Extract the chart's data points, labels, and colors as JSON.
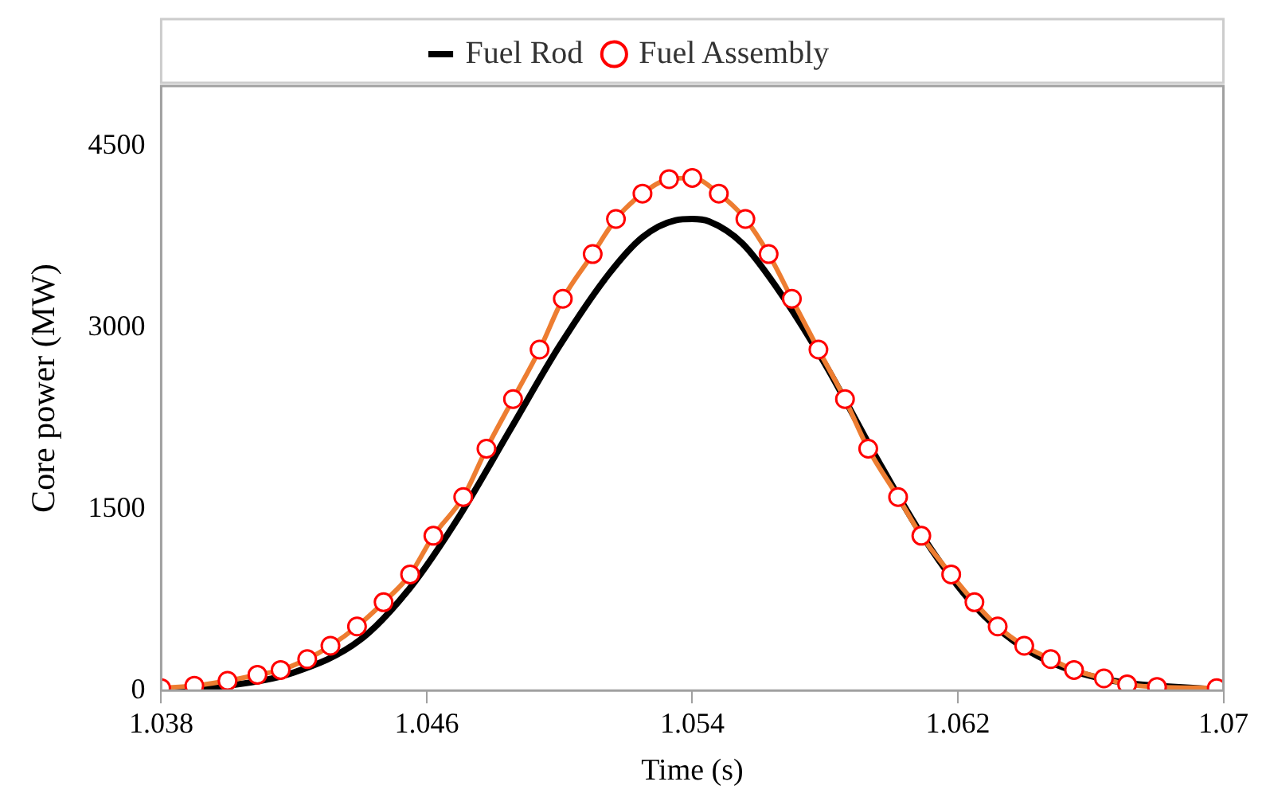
{
  "chart_data": {
    "type": "line",
    "xlabel": "Time (s)",
    "ylabel": "Core power (MW)",
    "xlim": [
      1.038,
      1.07
    ],
    "xticks": [
      1.038,
      1.046,
      1.054,
      1.062,
      1.07
    ],
    "ylim": [
      0,
      5000
    ],
    "yticks": [
      0,
      1500,
      3000,
      4500
    ],
    "grid": false,
    "legend": "top",
    "series": [
      {
        "name": "Fuel Rod",
        "color": "#000000",
        "marker": "none",
        "x": [
          1.038,
          1.04,
          1.042,
          1.044,
          1.0455,
          1.047,
          1.0485,
          1.05,
          1.0515,
          1.0525,
          1.0535,
          1.054,
          1.0545,
          1.0555,
          1.0565,
          1.058,
          1.0595,
          1.061,
          1.0625,
          1.064,
          1.066,
          1.07
        ],
        "values": [
          0,
          40,
          150,
          420,
          850,
          1450,
          2150,
          2850,
          3450,
          3750,
          3890,
          3900,
          3880,
          3700,
          3350,
          2700,
          1950,
          1250,
          700,
          350,
          120,
          0
        ]
      },
      {
        "name": "Fuel Assembly",
        "color": "#ff0000",
        "marker": "circle",
        "x": [
          1.038,
          1.039,
          1.04,
          1.0409,
          1.0416,
          1.0424,
          1.0431,
          1.0439,
          1.0447,
          1.0455,
          1.0462,
          1.0471,
          1.0478,
          1.0486,
          1.0494,
          1.0501,
          1.051,
          1.0517,
          1.0525,
          1.0533,
          1.054,
          1.0548,
          1.0556,
          1.0563,
          1.057,
          1.0578,
          1.0586,
          1.0593,
          1.0602,
          1.0609,
          1.0618,
          1.0625,
          1.0632,
          1.064,
          1.0648,
          1.0655,
          1.0664,
          1.0671,
          1.068,
          1.0698
        ],
        "values": [
          20,
          40,
          80,
          130,
          170,
          260,
          370,
          530,
          730,
          960,
          1280,
          1600,
          2000,
          2410,
          2820,
          3240,
          3610,
          3900,
          4110,
          4230,
          4240,
          4110,
          3900,
          3610,
          3240,
          2820,
          2410,
          2000,
          1600,
          1280,
          960,
          730,
          530,
          370,
          260,
          170,
          100,
          50,
          30,
          20
        ]
      }
    ]
  }
}
